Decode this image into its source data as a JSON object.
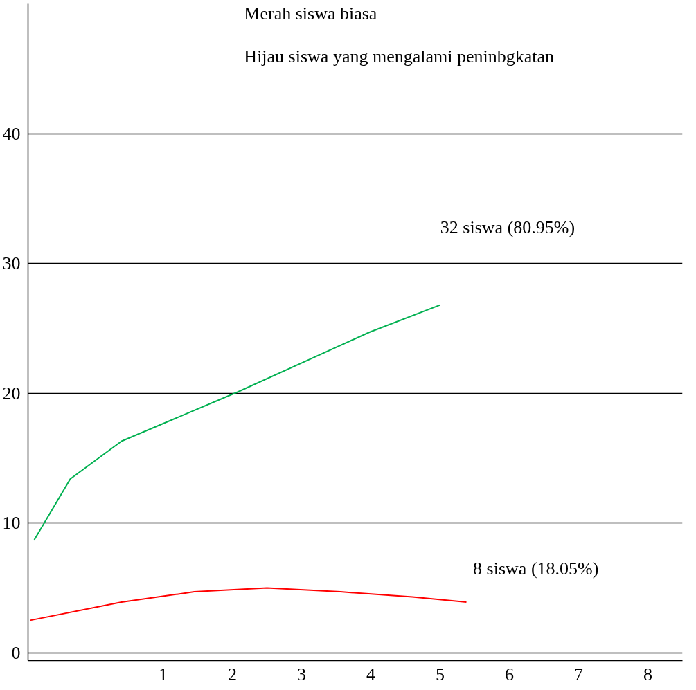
{
  "chart_data": {
    "type": "line",
    "xlim": [
      -0.95,
      8.5
    ],
    "xticks": [
      1,
      2,
      3,
      4,
      5,
      6,
      7,
      8
    ],
    "ylim": [
      -0.6,
      50
    ],
    "yticks": [
      0,
      10,
      20,
      30,
      40
    ],
    "grid": "y",
    "marker": "none",
    "line_style": "solid",
    "series": [
      {
        "color": "#00b050",
        "x": [
          -0.86,
          -0.34,
          0.4,
          1.24,
          2.08,
          3.03,
          3.98,
          5.0
        ],
        "values": [
          8.7,
          13.4,
          16.3,
          18.2,
          20.1,
          22.4,
          24.7,
          26.8
        ]
      },
      {
        "color": "#ff0000",
        "x": [
          -0.92,
          0.4,
          1.45,
          2.5,
          3.56,
          4.6,
          5.38
        ],
        "values": [
          2.5,
          3.9,
          4.7,
          5.0,
          4.7,
          4.3,
          3.9
        ]
      }
    ],
    "annotations": [
      "Merah siswa biasa",
      "Hijau siswa yang mengalami peninbgkatan",
      "32 siswa (80.95%)",
      "8 siswa (18.05%)"
    ]
  }
}
